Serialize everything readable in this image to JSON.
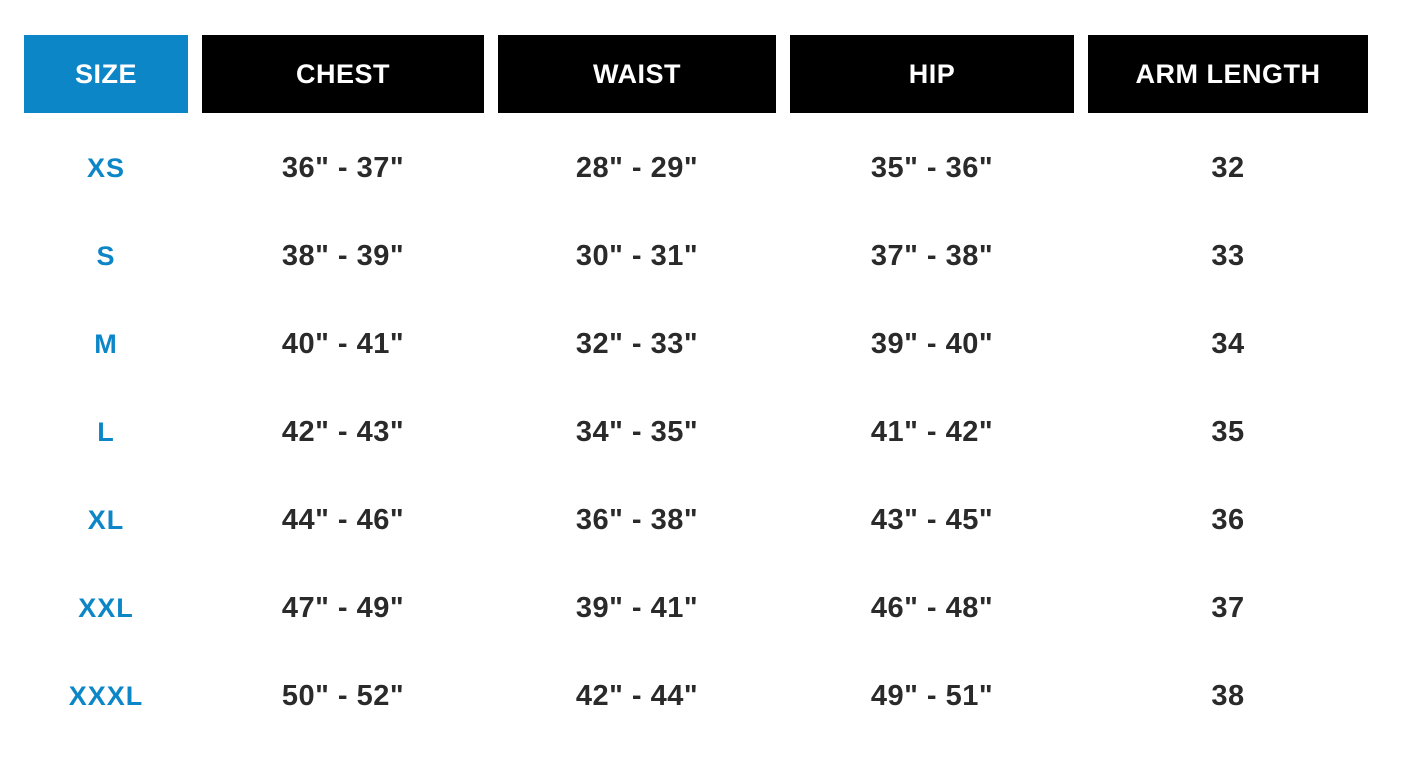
{
  "chart_data": {
    "type": "table",
    "columns": [
      "SIZE",
      "CHEST",
      "WAIST",
      "HIP",
      "ARM LENGTH"
    ],
    "rows": [
      [
        "XS",
        "36\" - 37\"",
        "28\" - 29\"",
        "35\" - 36\"",
        "32"
      ],
      [
        "S",
        "38\" - 39\"",
        "30\" - 31\"",
        "37\" - 38\"",
        "33"
      ],
      [
        "M",
        "40\" - 41\"",
        "32\" - 33\"",
        "39\" - 40\"",
        "34"
      ],
      [
        "L",
        "42\" - 43\"",
        "34\" - 35\"",
        "41\" - 42\"",
        "35"
      ],
      [
        "XL",
        "44\" - 46\"",
        "36\" - 38\"",
        "43\" - 45\"",
        "36"
      ],
      [
        "XXL",
        "47\" - 49\"",
        "39\" - 41\"",
        "46\" - 48\"",
        "37"
      ],
      [
        "XXXL",
        "50\" - 52\"",
        "42\" - 44\"",
        "49\" - 51\"",
        "38"
      ]
    ],
    "layout": {
      "highlighted_column": "SIZE",
      "grid": "off",
      "header_style": "solid-blocks"
    }
  },
  "colors": {
    "accent_blue": "#0d86c8",
    "header_black": "#000000",
    "header_text": "#ffffff",
    "value_text": "#2a2a2a",
    "background": "#ffffff"
  }
}
